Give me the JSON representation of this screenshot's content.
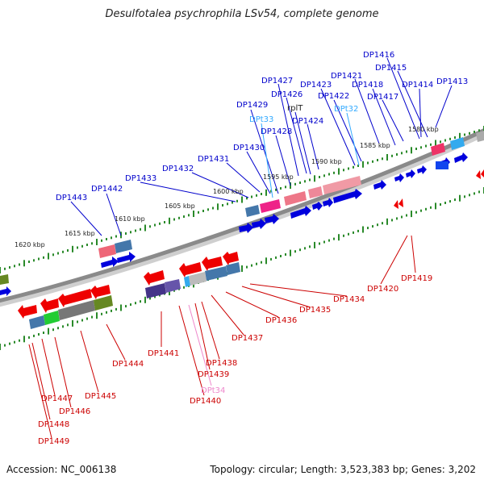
{
  "title": "Desulfotalea psychrophila LSv54, complete genome",
  "footer": {
    "accession": "Accession: NC_006138",
    "topology": "Topology: circular; Length: 3,523,383 bp; Genes: 3,202"
  },
  "colors": {
    "forward_label": "#0000cc",
    "reverse_label": "#cc0000",
    "trna_forward": "#33aaff",
    "trna_reverse": "#ee88cc",
    "backbone": "#999999",
    "ticks": "#2a8a2a"
  },
  "scale_labels": [
    "1580 kbp",
    "1585 kbp",
    "1590 kbp",
    "1595 kbp",
    "1600 kbp",
    "1605 kbp",
    "1610 kbp",
    "1615 kbp",
    "1620 kbp"
  ],
  "upper_labels": [
    {
      "text": "DP1416",
      "kind": "gene"
    },
    {
      "text": "DP1415",
      "kind": "gene"
    },
    {
      "text": "DP1421",
      "kind": "gene"
    },
    {
      "text": "DP1427",
      "kind": "gene"
    },
    {
      "text": "DP1423",
      "kind": "gene"
    },
    {
      "text": "DP1418",
      "kind": "gene"
    },
    {
      "text": "DP1414",
      "kind": "gene"
    },
    {
      "text": "DP1413",
      "kind": "gene"
    },
    {
      "text": "DP1426",
      "kind": "gene"
    },
    {
      "text": "DP1422",
      "kind": "gene"
    },
    {
      "text": "DP1417",
      "kind": "gene"
    },
    {
      "text": "DP1429",
      "kind": "gene"
    },
    {
      "text": "rplT",
      "kind": "gene"
    },
    {
      "text": "DPt32",
      "kind": "trna"
    },
    {
      "text": "DPt33",
      "kind": "trna"
    },
    {
      "text": "DP1424",
      "kind": "gene"
    },
    {
      "text": "DP1428",
      "kind": "gene"
    },
    {
      "text": "DP1430",
      "kind": "gene"
    },
    {
      "text": "DP1431",
      "kind": "gene"
    },
    {
      "text": "DP1432",
      "kind": "gene"
    },
    {
      "text": "DP1433",
      "kind": "gene"
    },
    {
      "text": "DP1442",
      "kind": "gene"
    },
    {
      "text": "DP1443",
      "kind": "gene"
    }
  ],
  "lower_labels": [
    {
      "text": "DP1419",
      "kind": "gene"
    },
    {
      "text": "DP1420",
      "kind": "gene"
    },
    {
      "text": "DP1434",
      "kind": "gene"
    },
    {
      "text": "DP1435",
      "kind": "gene"
    },
    {
      "text": "DP1436",
      "kind": "gene"
    },
    {
      "text": "DP1437",
      "kind": "gene"
    },
    {
      "text": "DP1441",
      "kind": "gene"
    },
    {
      "text": "DP1438",
      "kind": "gene"
    },
    {
      "text": "DP1444",
      "kind": "gene"
    },
    {
      "text": "DP1439",
      "kind": "gene"
    },
    {
      "text": "DPt34",
      "kind": "trna"
    },
    {
      "text": "DP1445",
      "kind": "gene"
    },
    {
      "text": "DP1440",
      "kind": "gene"
    },
    {
      "text": "DP1447",
      "kind": "gene"
    },
    {
      "text": "DP1446",
      "kind": "gene"
    },
    {
      "text": "DP1448",
      "kind": "gene"
    },
    {
      "text": "DP1449",
      "kind": "gene"
    }
  ]
}
